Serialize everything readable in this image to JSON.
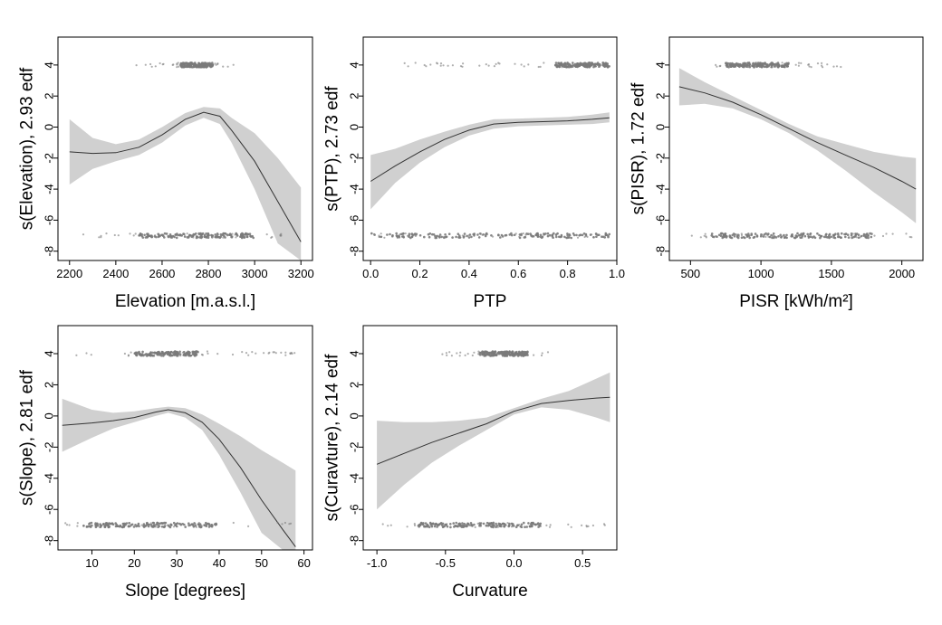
{
  "chart_data": [
    {
      "type": "line",
      "title": "",
      "xlabel": "Elevation [m.a.s.l.]",
      "ylabel": "s(Elevation), 2.93 edf",
      "xlim": [
        2150,
        3250
      ],
      "ylim": [
        -8.6,
        5.8
      ],
      "xticks": [
        2200,
        2400,
        2600,
        2800,
        3000,
        3200
      ],
      "yticks": [
        -8,
        -6,
        -4,
        -2,
        0,
        2,
        4
      ],
      "grid": false,
      "series": [
        {
          "x": [
            2200,
            2300,
            2400,
            2500,
            2600,
            2700,
            2780,
            2850,
            2900,
            3000,
            3100,
            3200
          ],
          "y": [
            -1.6,
            -1.7,
            -1.65,
            -1.3,
            -0.5,
            0.5,
            0.95,
            0.7,
            -0.2,
            -2.2,
            -4.8,
            -7.4
          ],
          "lower": [
            -3.7,
            -2.7,
            -2.2,
            -1.8,
            -1.0,
            0.1,
            0.6,
            0.2,
            -1.0,
            -4.0,
            -7.5,
            -8.6
          ],
          "upper": [
            0.5,
            -0.7,
            -1.1,
            -0.8,
            0.0,
            0.9,
            1.3,
            1.2,
            0.6,
            -0.4,
            -2.0,
            -3.9
          ]
        }
      ],
      "rug": [
        {
          "y": 4.0,
          "xmin": 2480,
          "xmax": 2920,
          "dense_min": 2680,
          "dense_max": 2820
        },
        {
          "y": -7.0,
          "xmin": 2200,
          "xmax": 3150,
          "dense_min": 2500,
          "dense_max": 3000
        }
      ]
    },
    {
      "type": "line",
      "title": "",
      "xlabel": "PTP",
      "ylabel": "s(PTP), 2.73 edf",
      "xlim": [
        -0.03,
        1.0
      ],
      "ylim": [
        -8.6,
        5.8
      ],
      "xticks": [
        0.0,
        0.2,
        0.4,
        0.6,
        0.8,
        1.0
      ],
      "yticks": [
        -8,
        -6,
        -4,
        -2,
        0,
        2,
        4
      ],
      "grid": false,
      "series": [
        {
          "x": [
            0.0,
            0.1,
            0.2,
            0.3,
            0.4,
            0.5,
            0.6,
            0.7,
            0.8,
            0.9,
            0.97
          ],
          "y": [
            -3.5,
            -2.5,
            -1.6,
            -0.8,
            -0.2,
            0.2,
            0.3,
            0.35,
            0.4,
            0.5,
            0.6
          ],
          "lower": [
            -5.3,
            -3.6,
            -2.3,
            -1.3,
            -0.55,
            -0.1,
            0.05,
            0.1,
            0.15,
            0.2,
            0.3
          ],
          "upper": [
            -1.8,
            -1.4,
            -0.8,
            -0.3,
            0.15,
            0.5,
            0.55,
            0.6,
            0.65,
            0.8,
            0.95
          ]
        }
      ],
      "rug": [
        {
          "y": 4.0,
          "xmin": 0.12,
          "xmax": 0.97,
          "dense_min": 0.75,
          "dense_max": 0.97
        },
        {
          "y": -7.0,
          "xmin": 0.0,
          "xmax": 0.97,
          "dense_min": 0.0,
          "dense_max": 0.97
        }
      ]
    },
    {
      "type": "line",
      "title": "",
      "xlabel": "PISR [kWh/m²]",
      "ylabel": "s(PISR), 1.72 edf",
      "xlim": [
        350,
        2150
      ],
      "ylim": [
        -8.6,
        5.8
      ],
      "xticks": [
        500,
        1000,
        1500,
        2000
      ],
      "yticks": [
        -8,
        -6,
        -4,
        -2,
        0,
        2,
        4
      ],
      "grid": false,
      "series": [
        {
          "x": [
            420,
            600,
            800,
            1000,
            1200,
            1400,
            1600,
            1800,
            2000,
            2100
          ],
          "y": [
            2.6,
            2.2,
            1.6,
            0.8,
            -0.1,
            -1.0,
            -1.8,
            -2.6,
            -3.5,
            -4.0
          ],
          "lower": [
            1.4,
            1.5,
            1.2,
            0.5,
            -0.4,
            -1.5,
            -2.8,
            -4.2,
            -5.5,
            -6.2
          ],
          "upper": [
            3.8,
            2.9,
            2.0,
            1.1,
            0.2,
            -0.6,
            -1.1,
            -1.6,
            -1.9,
            -2.0
          ]
        }
      ],
      "rug": [
        {
          "y": 4.0,
          "xmin": 650,
          "xmax": 1600,
          "dense_min": 750,
          "dense_max": 1200
        },
        {
          "y": -7.0,
          "xmin": 420,
          "xmax": 2100,
          "dense_min": 650,
          "dense_max": 1800
        }
      ]
    },
    {
      "type": "line",
      "title": "",
      "xlabel": "Slope [degrees]",
      "ylabel": "s(Slope), 2.81 edf",
      "xlim": [
        2,
        62
      ],
      "ylim": [
        -8.6,
        5.8
      ],
      "xticks": [
        10,
        20,
        30,
        40,
        50,
        60
      ],
      "yticks": [
        -8,
        -6,
        -4,
        -2,
        0,
        2,
        4
      ],
      "grid": false,
      "series": [
        {
          "x": [
            3,
            10,
            15,
            20,
            25,
            28,
            32,
            36,
            40,
            45,
            50,
            55,
            58
          ],
          "y": [
            -0.6,
            -0.45,
            -0.3,
            -0.1,
            0.25,
            0.4,
            0.2,
            -0.4,
            -1.5,
            -3.3,
            -5.4,
            -7.3,
            -8.4
          ],
          "lower": [
            -2.3,
            -1.4,
            -0.8,
            -0.4,
            0.0,
            0.2,
            -0.1,
            -0.9,
            -2.5,
            -4.9,
            -7.5,
            -8.6,
            -8.6
          ],
          "upper": [
            1.1,
            0.4,
            0.2,
            0.3,
            0.5,
            0.6,
            0.5,
            0.1,
            -0.5,
            -1.3,
            -2.2,
            -3.0,
            -3.5
          ]
        }
      ],
      "rug": [
        {
          "y": 4.0,
          "xmin": 5,
          "xmax": 58,
          "dense_min": 20,
          "dense_max": 35
        },
        {
          "y": -7.0,
          "xmin": 3,
          "xmax": 58,
          "dense_min": 8,
          "dense_max": 40
        }
      ]
    },
    {
      "type": "line",
      "title": "",
      "xlabel": "Curvature",
      "ylabel": "s(Curavture), 2.14 edf",
      "xlim": [
        -1.1,
        0.75
      ],
      "ylim": [
        -8.6,
        5.8
      ],
      "xticks": [
        -1.0,
        -0.5,
        0.0,
        0.5
      ],
      "yticks": [
        -8,
        -6,
        -4,
        -2,
        0,
        2,
        4
      ],
      "grid": false,
      "series": [
        {
          "x": [
            -1.0,
            -0.8,
            -0.6,
            -0.4,
            -0.2,
            0.0,
            0.2,
            0.4,
            0.6,
            0.7
          ],
          "y": [
            -3.1,
            -2.4,
            -1.7,
            -1.1,
            -0.5,
            0.3,
            0.8,
            1.0,
            1.15,
            1.2
          ],
          "lower": [
            -6.0,
            -4.4,
            -3.0,
            -1.9,
            -0.9,
            0.1,
            0.55,
            0.4,
            -0.1,
            -0.4
          ],
          "upper": [
            -0.3,
            -0.4,
            -0.4,
            -0.3,
            -0.1,
            0.5,
            1.1,
            1.6,
            2.4,
            2.8
          ]
        }
      ],
      "rug": [
        {
          "y": 4.0,
          "xmin": -0.55,
          "xmax": 0.25,
          "dense_min": -0.25,
          "dense_max": 0.1
        },
        {
          "y": -7.0,
          "xmin": -1.0,
          "xmax": 0.7,
          "dense_min": -0.7,
          "dense_max": 0.2
        }
      ]
    }
  ]
}
